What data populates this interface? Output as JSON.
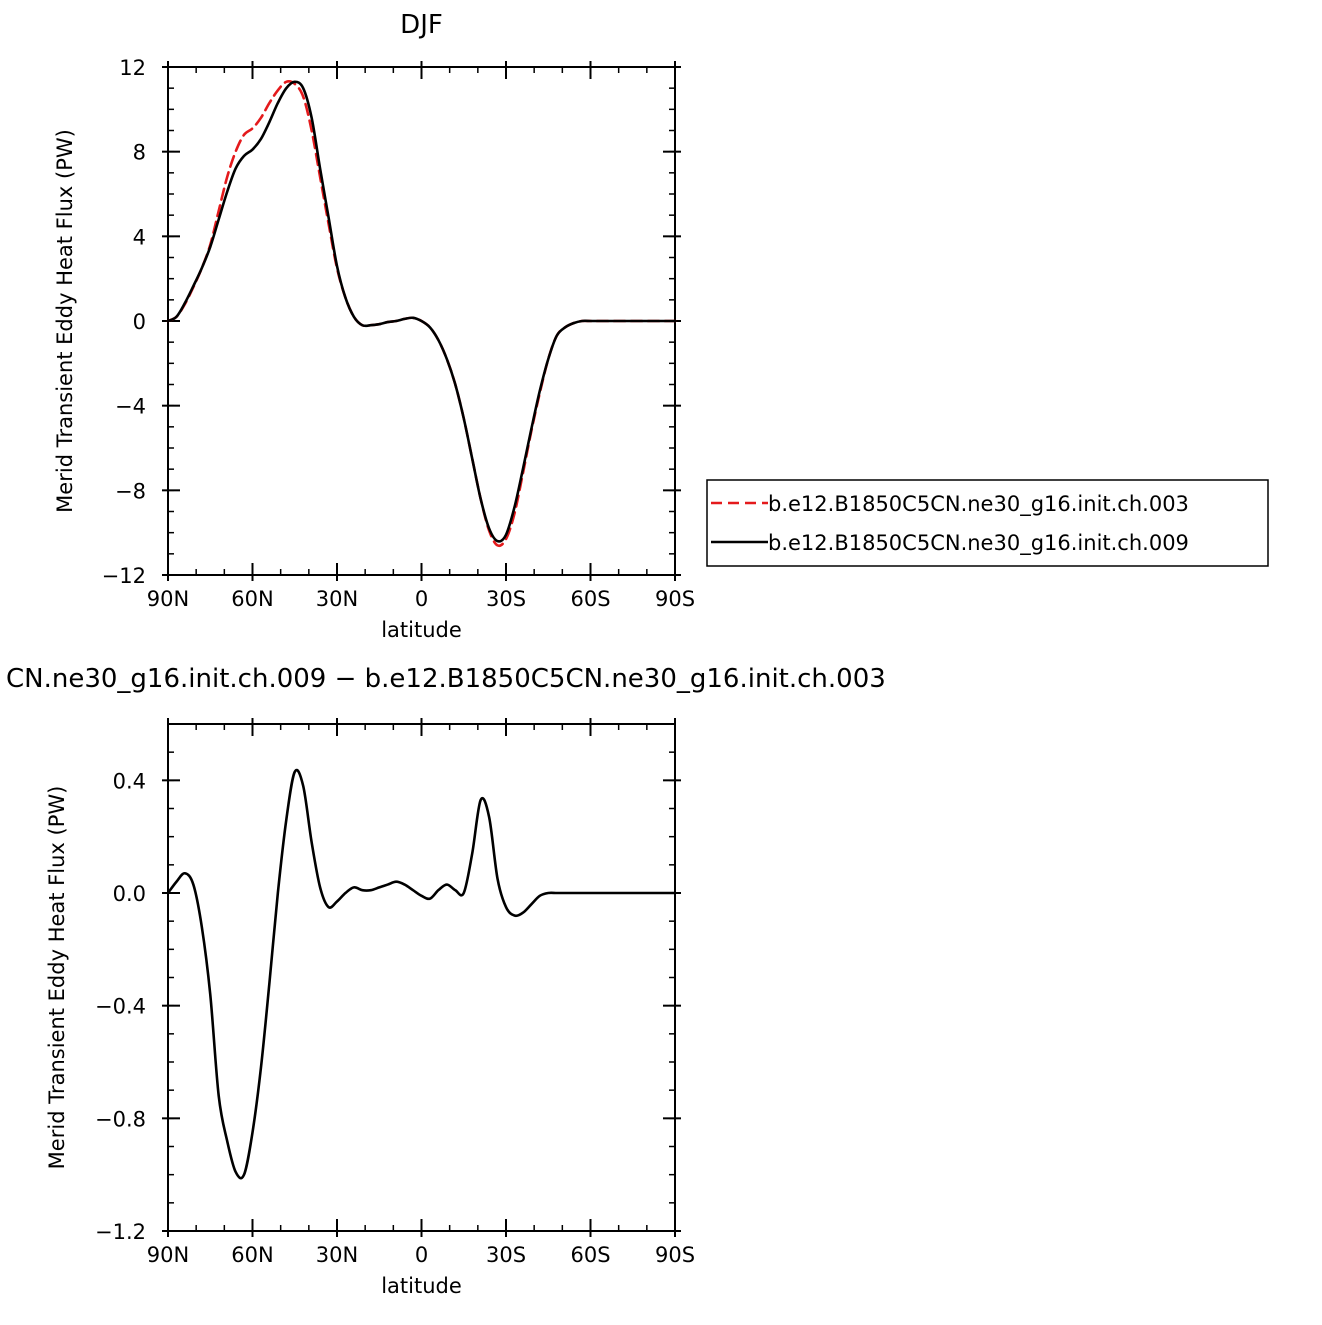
{
  "chart_data": [
    {
      "type": "line",
      "title": "DJF",
      "xlabel": "latitude",
      "ylabel": "Merid Transient Eddy Heat Flux (PW)",
      "xlim": [
        90,
        -90
      ],
      "ylim": [
        -12,
        12
      ],
      "xticks": [
        90,
        60,
        30,
        0,
        -30,
        -60,
        -90
      ],
      "xtick_labels": [
        "90N",
        "60N",
        "30N",
        "0",
        "30S",
        "60S",
        "90S"
      ],
      "yticks": [
        -12,
        -8,
        -4,
        0,
        4,
        8,
        12
      ],
      "ytick_labels": [
        "−12",
        "−8",
        "−4",
        "0",
        "4",
        "8",
        "12"
      ],
      "legend_position": "right",
      "series": [
        {
          "name": "b.e12.B1850C5CN.ne30_g16.init.ch.003",
          "color": "#e41a1c",
          "dash": "dashed",
          "x": [
            90,
            87,
            84,
            81,
            78,
            75,
            72,
            69,
            66,
            63,
            60,
            57,
            54,
            51,
            48,
            45,
            42,
            39,
            36,
            33,
            30,
            27,
            24,
            21,
            18,
            15,
            12,
            9,
            6,
            3,
            0,
            -3,
            -6,
            -9,
            -12,
            -15,
            -18,
            -21,
            -24,
            -27,
            -30,
            -33,
            -36,
            -39,
            -42,
            -45,
            -48,
            -51,
            -54,
            -57,
            -60,
            -63,
            -66,
            -69,
            -72,
            -75,
            -78,
            -81,
            -84,
            -87,
            -90
          ],
          "y": [
            0,
            0.2,
            0.8,
            1.6,
            2.5,
            3.6,
            5.2,
            6.8,
            8.0,
            8.8,
            9.1,
            9.6,
            10.3,
            10.9,
            11.3,
            11.2,
            10.6,
            9.0,
            6.8,
            4.6,
            2.5,
            1.1,
            0.2,
            -0.2,
            -0.2,
            -0.15,
            -0.05,
            0.0,
            0.1,
            0.15,
            0.0,
            -0.3,
            -0.9,
            -1.8,
            -3.0,
            -4.6,
            -6.5,
            -8.4,
            -9.9,
            -10.6,
            -10.3,
            -9.1,
            -7.2,
            -5.2,
            -3.4,
            -1.8,
            -0.7,
            -0.3,
            -0.1,
            0,
            0,
            0,
            0,
            0,
            0,
            0,
            0,
            0,
            0,
            0,
            0
          ]
        },
        {
          "name": "b.e12.B1850C5CN.ne30_g16.init.ch.009",
          "color": "#000000",
          "dash": "solid",
          "x": [
            90,
            87,
            84,
            81,
            78,
            75,
            72,
            69,
            66,
            63,
            60,
            57,
            54,
            51,
            48,
            45,
            42,
            39,
            36,
            33,
            30,
            27,
            24,
            21,
            18,
            15,
            12,
            9,
            6,
            3,
            0,
            -3,
            -6,
            -9,
            -12,
            -15,
            -18,
            -21,
            -24,
            -27,
            -30,
            -33,
            -36,
            -39,
            -42,
            -45,
            -48,
            -51,
            -54,
            -57,
            -60,
            -63,
            -66,
            -69,
            -72,
            -75,
            -78,
            -81,
            -84,
            -87,
            -90
          ],
          "y": [
            0,
            0.2,
            0.85,
            1.65,
            2.5,
            3.5,
            4.8,
            6.1,
            7.2,
            7.8,
            8.1,
            8.6,
            9.4,
            10.3,
            11.0,
            11.3,
            11.0,
            9.6,
            7.2,
            4.9,
            2.6,
            1.1,
            0.2,
            -0.2,
            -0.2,
            -0.15,
            -0.05,
            0.0,
            0.1,
            0.15,
            0.0,
            -0.3,
            -0.9,
            -1.8,
            -3.0,
            -4.6,
            -6.5,
            -8.4,
            -9.8,
            -10.4,
            -10.1,
            -8.8,
            -7.0,
            -5.1,
            -3.3,
            -1.8,
            -0.7,
            -0.3,
            -0.1,
            0,
            0,
            0,
            0,
            0,
            0,
            0,
            0,
            0,
            0,
            0,
            0
          ]
        }
      ]
    },
    {
      "type": "line",
      "title": "CN.ne30_g16.init.ch.009 − b.e12.B1850C5CN.ne30_g16.init.ch.003",
      "xlabel": "latitude",
      "ylabel": "Merid Transient Eddy Heat Flux (PW)",
      "xlim": [
        90,
        -90
      ],
      "ylim": [
        -1.2,
        0.6
      ],
      "xticks": [
        90,
        60,
        30,
        0,
        -30,
        -60,
        -90
      ],
      "xtick_labels": [
        "90N",
        "60N",
        "30N",
        "0",
        "30S",
        "60S",
        "90S"
      ],
      "yticks": [
        -1.2,
        -0.8,
        -0.4,
        0.0,
        0.4
      ],
      "ytick_labels": [
        "−1.2",
        "−0.8",
        "−0.4",
        "0.0",
        "0.4"
      ],
      "series": [
        {
          "color": "#000000",
          "dash": "solid",
          "x": [
            90,
            87,
            84,
            81,
            78,
            75,
            72,
            69,
            66,
            63,
            60,
            57,
            54,
            51,
            48,
            45,
            42,
            39,
            36,
            33,
            30,
            27,
            24,
            21,
            18,
            15,
            12,
            9,
            6,
            3,
            0,
            -3,
            -6,
            -9,
            -12,
            -15,
            -18,
            -21,
            -24,
            -27,
            -30,
            -33,
            -36,
            -39,
            -42,
            -45,
            -48,
            -51,
            -54,
            -57,
            -60,
            -63,
            -66,
            -69,
            -72,
            -75,
            -78,
            -81,
            -84,
            -87,
            -90
          ],
          "y": [
            0,
            0.04,
            0.07,
            0.03,
            -0.12,
            -0.36,
            -0.72,
            -0.88,
            -0.99,
            -1.0,
            -0.85,
            -0.62,
            -0.32,
            0.0,
            0.26,
            0.43,
            0.38,
            0.18,
            0.02,
            -0.05,
            -0.03,
            0.0,
            0.02,
            0.01,
            0.01,
            0.02,
            0.03,
            0.04,
            0.03,
            0.01,
            -0.01,
            -0.02,
            0.01,
            0.03,
            0.01,
            0.0,
            0.14,
            0.33,
            0.27,
            0.05,
            -0.05,
            -0.08,
            -0.07,
            -0.04,
            -0.01,
            0.0,
            0.0,
            0.0,
            0.0,
            0.0,
            0.0,
            0.0,
            0.0,
            0.0,
            0.0,
            0.0,
            0.0,
            0.0,
            0.0,
            0.0,
            0.0
          ]
        }
      ]
    }
  ]
}
